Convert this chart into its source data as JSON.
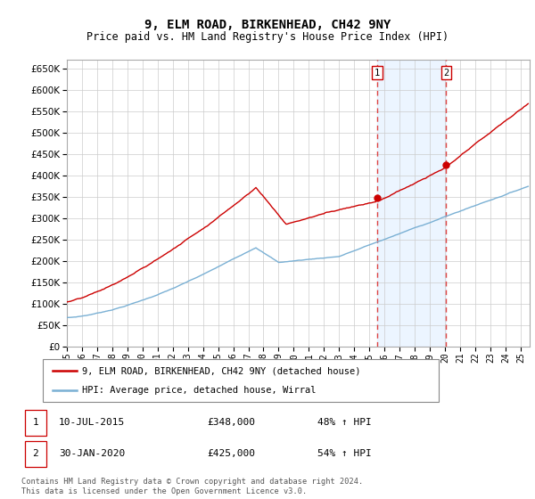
{
  "title": "9, ELM ROAD, BIRKENHEAD, CH42 9NY",
  "subtitle": "Price paid vs. HM Land Registry's House Price Index (HPI)",
  "title_fontsize": 10,
  "subtitle_fontsize": 8.5,
  "ylim": [
    0,
    670000
  ],
  "yticks": [
    0,
    50000,
    100000,
    150000,
    200000,
    250000,
    300000,
    350000,
    400000,
    450000,
    500000,
    550000,
    600000,
    650000
  ],
  "background_color": "#ffffff",
  "grid_color": "#cccccc",
  "annotation1": {
    "label": "1",
    "year": 2015.53,
    "price": 348000,
    "text": "10-JUL-2015",
    "price_text": "£348,000",
    "hpi_text": "48% ↑ HPI",
    "vline_color": "#dd4444",
    "marker_color": "#cc0000"
  },
  "annotation2": {
    "label": "2",
    "year": 2020.08,
    "price": 425000,
    "text": "30-JAN-2020",
    "price_text": "£425,000",
    "hpi_text": "54% ↑ HPI",
    "vline_color": "#dd4444",
    "marker_color": "#cc0000"
  },
  "legend_label_red": "9, ELM ROAD, BIRKENHEAD, CH42 9NY (detached house)",
  "legend_label_blue": "HPI: Average price, detached house, Wirral",
  "red_line_color": "#cc0000",
  "blue_line_color": "#7ab0d4",
  "footnote": "Contains HM Land Registry data © Crown copyright and database right 2024.\nThis data is licensed under the Open Government Licence v3.0.",
  "xstart_year": 1995,
  "xend_year": 2025
}
